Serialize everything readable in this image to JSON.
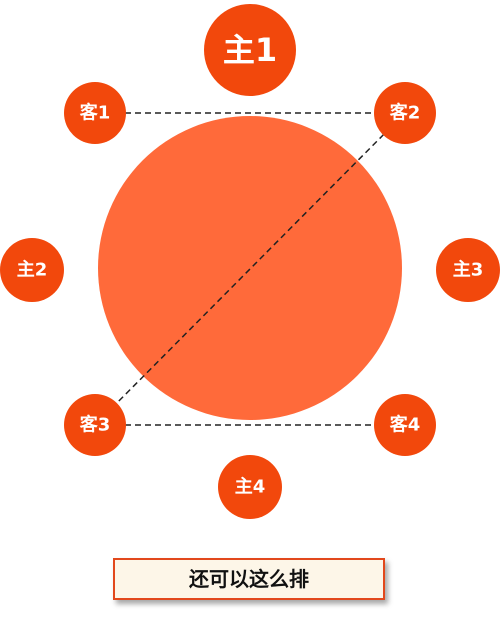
{
  "nodes": [
    {
      "label": "主1"
    },
    {
      "label": "客1"
    },
    {
      "label": "客2"
    },
    {
      "label": "主2"
    },
    {
      "label": "主3"
    },
    {
      "label": "客3"
    },
    {
      "label": "客4"
    },
    {
      "label": "主4"
    }
  ],
  "caption": "还可以这么排"
}
